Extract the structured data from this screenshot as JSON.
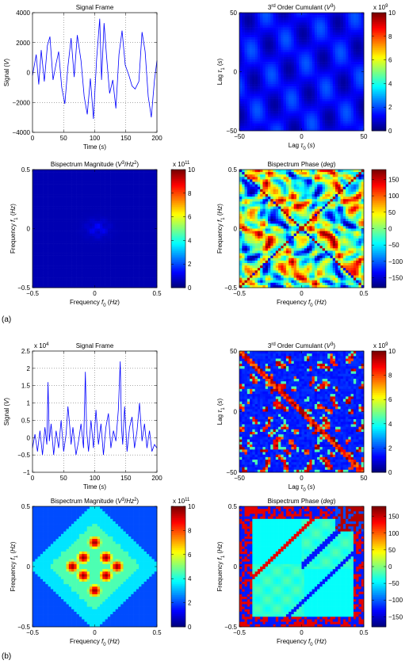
{
  "panel_labels": [
    "(a)",
    "(b)"
  ],
  "colormaps": {
    "jet": [
      "#00007f",
      "#0000ff",
      "#007fff",
      "#00ffff",
      "#7fff7f",
      "#ffff00",
      "#ff7f00",
      "#ff0000",
      "#7f0000"
    ]
  },
  "colors": {
    "signal_line": "#0000ff",
    "background": "#ffffff",
    "axis": "#000000"
  },
  "chart_data": [
    {
      "id": "a_signal",
      "type": "line",
      "title": "Signal Frame",
      "xlabel": "Time (s)",
      "ylabel": "Signal (V)",
      "y_exponent": "",
      "xlim": [
        0,
        200
      ],
      "ylim": [
        -4000,
        4000
      ],
      "xticks": [
        0,
        50,
        100,
        150,
        200
      ],
      "yticks": [
        -4000,
        -2000,
        0,
        2000,
        4000
      ],
      "xtick_labels": [
        "0",
        "50",
        "100",
        "150",
        "200"
      ],
      "ytick_labels": [
        "−4000",
        "−2000",
        "0",
        "2000",
        "4000"
      ],
      "grid": true,
      "series": [
        {
          "x": [
            0,
            6,
            10,
            14,
            19,
            24,
            28,
            33,
            38,
            42,
            47,
            52,
            57,
            62,
            67,
            72,
            78,
            83,
            88,
            93,
            98,
            103,
            108,
            111,
            115,
            119,
            124,
            129,
            134,
            139,
            144,
            149,
            155,
            160,
            165,
            171,
            176,
            181,
            186,
            191,
            196,
            200
          ],
          "values": [
            -200,
            1200,
            -800,
            1500,
            -600,
            1800,
            2400,
            -500,
            600,
            1400,
            -1000,
            -2100,
            400,
            2300,
            -300,
            2500,
            800,
            -1600,
            -2800,
            -400,
            -3100,
            900,
            3600,
            -500,
            3300,
            1100,
            -1400,
            -500,
            -2400,
            1200,
            2800,
            500,
            -200,
            -900,
            -1100,
            -600,
            2700,
            1400,
            -1600,
            -3000,
            -500,
            800
          ]
        }
      ]
    },
    {
      "id": "a_cumulant",
      "type": "heatmap",
      "title_html": "3<tspan baseline-shift='super' font-size='6'>rd</tspan> Order Cumulant (<tspan font-style='italic'>V</tspan><tspan baseline-shift='super' font-size='6'>3</tspan>)",
      "xlabel": "Lag τ0 (s)",
      "ylabel": "Lag τ1 (s)",
      "xlim": [
        -50,
        50
      ],
      "ylim": [
        -50,
        50
      ],
      "xticks": [
        -50,
        0,
        50
      ],
      "yticks": [
        -50,
        0,
        50
      ],
      "xtick_labels": [
        "−50",
        "0",
        "50"
      ],
      "ytick_labels": [
        "−50",
        "0",
        "50"
      ],
      "colorbar": {
        "ticks": [
          0,
          2,
          4,
          6,
          8,
          10
        ],
        "labels": [
          "0",
          "2",
          "4",
          "6",
          "8",
          "10"
        ],
        "exponent": "x 10",
        "exponent_power": "9",
        "range": [
          0,
          10
        ]
      },
      "pattern": "a_cumulant"
    },
    {
      "id": "a_bispec_mag",
      "type": "heatmap",
      "title_html": "Bispectrum Magnitude (<tspan font-style='italic'>V</tspan><tspan baseline-shift='super' font-size='6'>3</tspan>/<tspan font-style='italic'>Hz</tspan><tspan baseline-shift='super' font-size='6'>2</tspan>)",
      "xlabel": "Frequency f0 (Hz)",
      "ylabel": "Frequency f1 (Hz)",
      "xlim": [
        -0.5,
        0.5
      ],
      "ylim": [
        -0.5,
        0.5
      ],
      "xticks": [
        -0.5,
        0,
        0.5
      ],
      "yticks": [
        -0.5,
        0,
        0.5
      ],
      "xtick_labels": [
        "−0.5",
        "0",
        "0.5"
      ],
      "ytick_labels": [
        "−0.5",
        "0",
        "0.5"
      ],
      "colorbar": {
        "ticks": [
          0,
          2,
          4,
          6,
          8,
          10
        ],
        "labels": [
          "0",
          "2",
          "4",
          "6",
          "8",
          "10"
        ],
        "exponent": "x 10",
        "exponent_power": "11",
        "range": [
          0,
          10
        ]
      },
      "pattern": "a_mag"
    },
    {
      "id": "a_bispec_phase",
      "type": "heatmap",
      "title_html": "Bispectrum Phase (<tspan font-style='italic'>deg</tspan>)",
      "xlabel": "Frequency f0 (Hz)",
      "ylabel": "Frequency f1 (Hz)",
      "xlim": [
        -0.5,
        0.5
      ],
      "ylim": [
        -0.5,
        0.5
      ],
      "xticks": [
        -0.5,
        0,
        0.5
      ],
      "yticks": [
        -0.5,
        0,
        0.5
      ],
      "xtick_labels": [
        "−0.5",
        "0",
        "0.5"
      ],
      "ytick_labels": [
        "−0.5",
        "0",
        "0.5"
      ],
      "colorbar": {
        "ticks": [
          150,
          100,
          50,
          0,
          -50,
          -100,
          -150
        ],
        "labels": [
          "150",
          "100",
          "50",
          "0",
          "−50",
          "−100",
          "−150"
        ],
        "exponent": "",
        "exponent_power": "",
        "range": [
          -180,
          180
        ]
      },
      "pattern": "a_phase"
    },
    {
      "id": "b_signal",
      "type": "line",
      "title": "Signal Frame",
      "xlabel": "Time (s)",
      "ylabel": "Signal (V)",
      "y_exponent": "x 10",
      "y_exponent_power": "4",
      "xlim": [
        0,
        200
      ],
      "ylim": [
        -1,
        2.5
      ],
      "xticks": [
        0,
        50,
        100,
        150,
        200
      ],
      "yticks": [
        -1,
        -0.5,
        0,
        0.5,
        1,
        1.5,
        2,
        2.5
      ],
      "xtick_labels": [
        "0",
        "50",
        "100",
        "150",
        "200"
      ],
      "ytick_labels": [
        "−1",
        "−0.5",
        "0",
        "0.5",
        "1",
        "1.5",
        "2",
        "2.5"
      ],
      "grid": true,
      "series": [
        {
          "x": [
            0,
            4,
            8,
            12,
            16,
            20,
            23,
            25,
            27,
            30,
            34,
            38,
            42,
            46,
            50,
            54,
            57,
            60,
            62,
            65,
            70,
            74,
            78,
            82,
            85,
            87,
            90,
            94,
            98,
            102,
            106,
            110,
            114,
            118,
            122,
            126,
            130,
            134,
            138,
            141,
            143,
            145,
            148,
            152,
            156,
            160,
            164,
            168,
            172,
            176,
            180,
            184,
            188,
            192,
            196,
            200
          ],
          "values": [
            -0.3,
            0.1,
            -0.4,
            0.2,
            -0.5,
            0.3,
            -0.2,
            1.6,
            -0.1,
            0.4,
            -0.5,
            0.2,
            -0.3,
            0.5,
            -0.4,
            0.1,
            0.9,
            0.3,
            -0.2,
            0.3,
            -0.5,
            -0.1,
            0.4,
            -0.3,
            1.9,
            0.2,
            -0.4,
            0.5,
            -0.3,
            0.8,
            -0.2,
            0.4,
            -0.5,
            0.3,
            0.7,
            -0.3,
            0.2,
            -0.1,
            0.8,
            2.2,
            0.3,
            -0.2,
            0.9,
            -0.4,
            0.3,
            0.6,
            -0.3,
            0.2,
            1.0,
            -0.1,
            0.4,
            -0.3,
            0.2,
            -0.4,
            -0.2,
            -0.3
          ]
        }
      ]
    },
    {
      "id": "b_cumulant",
      "type": "heatmap",
      "title_html": "3<tspan baseline-shift='super' font-size='6'>rd</tspan> Order Cumulant (<tspan font-style='italic'>V</tspan><tspan baseline-shift='super' font-size='6'>3</tspan>)",
      "xlabel": "Lag τ0 (s)",
      "ylabel": "Lag τ1 (s)",
      "xlim": [
        -50,
        50
      ],
      "ylim": [
        -50,
        50
      ],
      "xticks": [
        -50,
        0,
        50
      ],
      "yticks": [
        -50,
        0,
        50
      ],
      "xtick_labels": [
        "−50",
        "0",
        "50"
      ],
      "ytick_labels": [
        "−50",
        "0",
        "50"
      ],
      "colorbar": {
        "ticks": [
          0,
          2,
          4,
          6,
          8,
          10
        ],
        "labels": [
          "0",
          "2",
          "4",
          "6",
          "8",
          "10"
        ],
        "exponent": "x 10",
        "exponent_power": "9",
        "range": [
          0,
          10
        ]
      },
      "pattern": "b_cumulant"
    },
    {
      "id": "b_bispec_mag",
      "type": "heatmap",
      "title_html": "Bispectrum Magnitude (<tspan font-style='italic'>V</tspan><tspan baseline-shift='super' font-size='6'>3</tspan>/<tspan font-style='italic'>Hz</tspan><tspan baseline-shift='super' font-size='6'>2</tspan>)",
      "xlabel": "Frequency f0 (Hz)",
      "ylabel": "Frequency f1 (Hz)",
      "xlim": [
        -0.5,
        0.5
      ],
      "ylim": [
        -0.5,
        0.5
      ],
      "xticks": [
        -0.5,
        0,
        0.5
      ],
      "yticks": [
        -0.5,
        0,
        0.5
      ],
      "xtick_labels": [
        "−0.5",
        "0",
        "0.5"
      ],
      "ytick_labels": [
        "−0.5",
        "0",
        "0.5"
      ],
      "colorbar": {
        "ticks": [
          0,
          2,
          4,
          6,
          8,
          10
        ],
        "labels": [
          "0",
          "2",
          "4",
          "6",
          "8",
          "10"
        ],
        "exponent": "x 10",
        "exponent_power": "11",
        "range": [
          0,
          10
        ]
      },
      "pattern": "b_mag"
    },
    {
      "id": "b_bispec_phase",
      "type": "heatmap",
      "title_html": "Bispectrum Phase (<tspan font-style='italic'>deg</tspan>)",
      "xlabel": "Frequency f0 (Hz)",
      "ylabel": "Frequency f1 (Hz)",
      "xlim": [
        -0.5,
        0.5
      ],
      "ylim": [
        -0.5,
        0.5
      ],
      "xticks": [
        -0.5,
        0,
        0.5
      ],
      "yticks": [
        -0.5,
        0,
        0.5
      ],
      "xtick_labels": [
        "−0.5",
        "0",
        "0.5"
      ],
      "ytick_labels": [
        "−0.5",
        "0",
        "0.5"
      ],
      "colorbar": {
        "ticks": [
          150,
          100,
          50,
          0,
          -50,
          -100,
          -150
        ],
        "labels": [
          "150",
          "100",
          "50",
          "0",
          "−50",
          "−100",
          "−150"
        ],
        "exponent": "",
        "exponent_power": "",
        "range": [
          -180,
          180
        ]
      },
      "pattern": "b_phase"
    }
  ]
}
